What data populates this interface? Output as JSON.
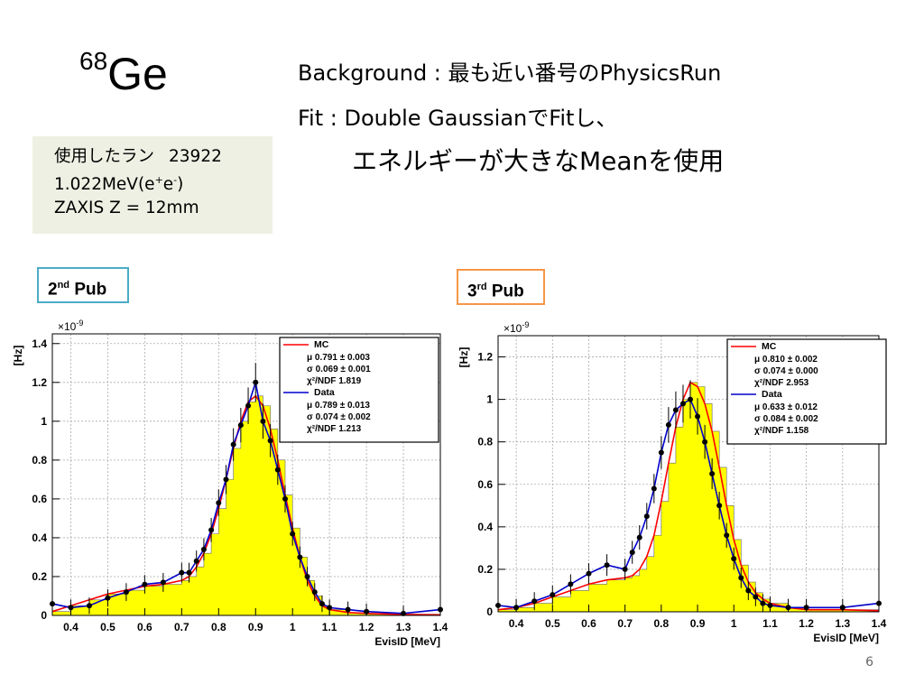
{
  "slide": {
    "title_sup": "68",
    "title_main": "Ge",
    "line1": "Background : 最も近い番号のPhysicsRun",
    "line2": "Fit : Double GaussianでFitし、",
    "line3": "エネルギーが大きなMeanを使用",
    "info": {
      "run_label": "使用したラン",
      "run_number": "23922",
      "energy_prefix": "1.022MeV(e",
      "energy_plus": "+",
      "energy_e": "e",
      "energy_minus": "-",
      "energy_suffix": ")",
      "zaxis": "ZAXIS Z = 12mm"
    },
    "pub2": {
      "number": "2",
      "sup": "nd",
      "word": "Pub"
    },
    "pub3": {
      "number": "3",
      "sup": "rd",
      "word": "Pub"
    },
    "page_number": "6"
  },
  "colors": {
    "fill": "#ffff00",
    "mc": "#ff0000",
    "data": "#0000cc",
    "points": "#000000",
    "pub2_border": "#4bacc6",
    "pub3_border": "#f79646",
    "info_bg": "#eef0e3"
  },
  "chart_data": [
    {
      "type": "line",
      "name": "2nd Pub",
      "xlabel": "EvisID [MeV]",
      "ylabel": "[Hz]",
      "y_multiplier": "×10",
      "y_exponent": "-9",
      "xlim": [
        0.35,
        1.4
      ],
      "ylim": [
        0,
        1.45
      ],
      "xticks": [
        0.4,
        0.5,
        0.6,
        0.7,
        0.8,
        0.9,
        1,
        1.1,
        1.2,
        1.3,
        1.4
      ],
      "xtick_labels": [
        "0.4",
        "0.5",
        "0.6",
        "0.7",
        "0.8",
        "0.9",
        "1",
        "1.1",
        "1.2",
        "1.3",
        "1.4"
      ],
      "yticks": [
        0,
        0.2,
        0.4,
        0.6,
        0.8,
        1,
        1.2,
        1.4
      ],
      "ytick_labels": [
        "0",
        "0.2",
        "0.4",
        "0.6",
        "0.8",
        "1",
        "1.2",
        "1.4"
      ],
      "grid": true,
      "legend": [
        {
          "name": "MC",
          "lines": [
            "μ  0.791 ± 0.003",
            "σ  0.069 ± 0.001",
            "χ²/NDF  1.819"
          ]
        },
        {
          "name": "Data",
          "lines": [
            "μ  0.789 ± 0.013",
            "σ  0.074 ± 0.002",
            "χ²/NDF  1.213"
          ]
        }
      ],
      "series": [
        {
          "name": "MC",
          "role": "histogram+fit",
          "x": [
            0.35,
            0.4,
            0.45,
            0.5,
            0.55,
            0.6,
            0.65,
            0.7,
            0.72,
            0.74,
            0.76,
            0.78,
            0.8,
            0.82,
            0.84,
            0.86,
            0.88,
            0.9,
            0.92,
            0.94,
            0.96,
            0.98,
            1.0,
            1.02,
            1.04,
            1.06,
            1.08,
            1.1,
            1.15,
            1.2,
            1.3,
            1.4
          ],
          "y": [
            0.02,
            0.05,
            0.08,
            0.11,
            0.13,
            0.15,
            0.16,
            0.18,
            0.2,
            0.25,
            0.32,
            0.42,
            0.55,
            0.7,
            0.86,
            1.0,
            1.1,
            1.13,
            1.08,
            0.96,
            0.8,
            0.62,
            0.45,
            0.3,
            0.18,
            0.1,
            0.05,
            0.03,
            0.015,
            0.01,
            0.005,
            0.003
          ]
        },
        {
          "name": "Data",
          "role": "points+fit",
          "x": [
            0.35,
            0.4,
            0.45,
            0.5,
            0.55,
            0.6,
            0.65,
            0.7,
            0.72,
            0.74,
            0.76,
            0.78,
            0.8,
            0.82,
            0.84,
            0.86,
            0.88,
            0.9,
            0.92,
            0.94,
            0.96,
            0.98,
            1.0,
            1.02,
            1.04,
            1.06,
            1.08,
            1.1,
            1.15,
            1.2,
            1.3,
            1.4
          ],
          "y": [
            0.06,
            0.04,
            0.05,
            0.09,
            0.12,
            0.16,
            0.17,
            0.22,
            0.22,
            0.28,
            0.34,
            0.44,
            0.58,
            0.7,
            0.88,
            0.98,
            1.08,
            1.2,
            1.0,
            0.9,
            0.75,
            0.6,
            0.42,
            0.3,
            0.2,
            0.12,
            0.06,
            0.04,
            0.03,
            0.02,
            0.01,
            0.03
          ]
        }
      ]
    },
    {
      "type": "line",
      "name": "3rd Pub",
      "xlabel": "EvisID [MeV]",
      "ylabel": "[Hz]",
      "y_multiplier": "×10",
      "y_exponent": "-9",
      "xlim": [
        0.35,
        1.4
      ],
      "ylim": [
        0,
        1.3
      ],
      "xticks": [
        0.4,
        0.5,
        0.6,
        0.7,
        0.8,
        0.9,
        1,
        1.1,
        1.2,
        1.3,
        1.4
      ],
      "xtick_labels": [
        "0.4",
        "0.5",
        "0.6",
        "0.7",
        "0.8",
        "0.9",
        "1",
        "1.1",
        "1.2",
        "1.3",
        "1.4"
      ],
      "yticks": [
        0,
        0.2,
        0.4,
        0.6,
        0.8,
        1,
        1.2
      ],
      "ytick_labels": [
        "0",
        "0.2",
        "0.4",
        "0.6",
        "0.8",
        "1",
        "1.2"
      ],
      "grid": true,
      "legend": [
        {
          "name": "MC",
          "lines": [
            "μ  0.810 ± 0.002",
            "σ  0.074 ± 0.000",
            "χ²/NDF  2.953"
          ]
        },
        {
          "name": "Data",
          "lines": [
            "μ  0.633 ± 0.012",
            "σ  0.084 ± 0.002",
            "χ²/NDF  1.158"
          ]
        }
      ],
      "series": [
        {
          "name": "MC",
          "role": "histogram+fit",
          "x": [
            0.35,
            0.4,
            0.45,
            0.5,
            0.55,
            0.6,
            0.65,
            0.7,
            0.72,
            0.74,
            0.76,
            0.78,
            0.8,
            0.82,
            0.84,
            0.86,
            0.88,
            0.9,
            0.92,
            0.94,
            0.96,
            0.98,
            1.0,
            1.02,
            1.04,
            1.06,
            1.08,
            1.1,
            1.15,
            1.2,
            1.3,
            1.4
          ],
          "y": [
            0.01,
            0.02,
            0.04,
            0.07,
            0.1,
            0.13,
            0.15,
            0.16,
            0.17,
            0.2,
            0.26,
            0.36,
            0.52,
            0.7,
            0.87,
            1.0,
            1.08,
            1.06,
            0.98,
            0.85,
            0.68,
            0.5,
            0.34,
            0.22,
            0.14,
            0.09,
            0.06,
            0.04,
            0.02,
            0.01,
            0.01,
            0.005
          ]
        },
        {
          "name": "Data",
          "role": "points+fit",
          "x": [
            0.35,
            0.4,
            0.45,
            0.5,
            0.55,
            0.6,
            0.65,
            0.7,
            0.72,
            0.74,
            0.76,
            0.78,
            0.8,
            0.82,
            0.84,
            0.86,
            0.88,
            0.9,
            0.92,
            0.94,
            0.96,
            0.98,
            1.0,
            1.02,
            1.04,
            1.06,
            1.08,
            1.1,
            1.15,
            1.2,
            1.3,
            1.4
          ],
          "y": [
            0.03,
            0.02,
            0.05,
            0.08,
            0.13,
            0.18,
            0.22,
            0.2,
            0.28,
            0.35,
            0.45,
            0.58,
            0.75,
            0.88,
            0.95,
            0.98,
            1.0,
            0.92,
            0.8,
            0.65,
            0.5,
            0.36,
            0.25,
            0.16,
            0.1,
            0.07,
            0.04,
            0.03,
            0.02,
            0.02,
            0.02,
            0.04
          ]
        }
      ]
    }
  ]
}
